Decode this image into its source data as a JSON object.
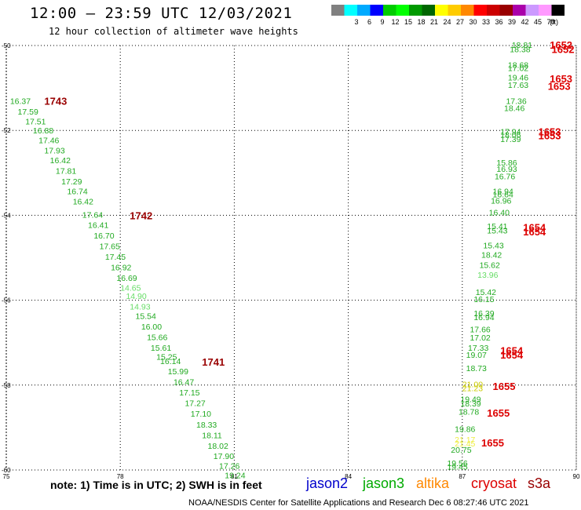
{
  "header": {
    "title": "12:00 – 23:59 UTC 12/03/2021",
    "subtitle": "12 hour collection of altimeter wave heights"
  },
  "legend": {
    "unit": "(ft)",
    "swatches": [
      {
        "color": "#808080",
        "label": ""
      },
      {
        "color": "#00ffff",
        "label": "3"
      },
      {
        "color": "#00aaff",
        "label": "6"
      },
      {
        "color": "#0000ff",
        "label": "9"
      },
      {
        "color": "#00cc00",
        "label": "12"
      },
      {
        "color": "#00ff00",
        "label": "15"
      },
      {
        "color": "#009900",
        "label": "18"
      },
      {
        "color": "#006600",
        "label": "21"
      },
      {
        "color": "#ffff00",
        "label": "24"
      },
      {
        "color": "#ffcc00",
        "label": "27"
      },
      {
        "color": "#ff8800",
        "label": "30"
      },
      {
        "color": "#ff0000",
        "label": "33"
      },
      {
        "color": "#cc0000",
        "label": "36"
      },
      {
        "color": "#990000",
        "label": "39"
      },
      {
        "color": "#aa00aa",
        "label": "42"
      },
      {
        "color": "#cc99ff",
        "label": "45"
      },
      {
        "color": "#ff99ff",
        "label": "70"
      },
      {
        "color": "#000000",
        "label": ""
      }
    ]
  },
  "map": {
    "lon_range": [
      75,
      90
    ],
    "lat_range": [
      -60,
      -50
    ],
    "lon_ticks": [
      "75",
      "78",
      "81",
      "84",
      "87",
      "90"
    ],
    "lat_ticks": [
      "-50",
      "-52",
      "-54",
      "-56",
      "-58",
      "-60"
    ]
  },
  "footer": {
    "note": "note:  1) Time is in UTC;  2) SWH is in feet",
    "satellites": [
      {
        "name": "jason2",
        "color": "#0000cc"
      },
      {
        "name": "jason3",
        "color": "#00aa00"
      },
      {
        "name": "altika",
        "color": "#ff8800"
      },
      {
        "name": "cryosat",
        "color": "#dd0000"
      },
      {
        "name": "s3a",
        "color": "#990000"
      }
    ],
    "credit": "NOAA/NESDIS Center for Satellite Applications and Research    Dec  6 08:27:46 UTC 2021"
  },
  "observations": [
    {
      "text": "16.37",
      "lon": 75.1,
      "lat": -51.3,
      "color": "#22aa22"
    },
    {
      "text": "17.59",
      "lon": 75.3,
      "lat": -51.55,
      "color": "#22aa22"
    },
    {
      "text": "17.51",
      "lon": 75.5,
      "lat": -51.78,
      "color": "#22aa22"
    },
    {
      "text": "16.88",
      "lon": 75.7,
      "lat": -52.0,
      "color": "#22aa22"
    },
    {
      "text": "17.46",
      "lon": 75.85,
      "lat": -52.23,
      "color": "#22aa22"
    },
    {
      "text": "17.93",
      "lon": 76.0,
      "lat": -52.47,
      "color": "#22aa22"
    },
    {
      "text": "16.42",
      "lon": 76.15,
      "lat": -52.7,
      "color": "#22aa22"
    },
    {
      "text": "17.81",
      "lon": 76.3,
      "lat": -52.95,
      "color": "#22aa22"
    },
    {
      "text": "17.29",
      "lon": 76.45,
      "lat": -53.2,
      "color": "#22aa22"
    },
    {
      "text": "16.74",
      "lon": 76.6,
      "lat": -53.43,
      "color": "#22aa22"
    },
    {
      "text": "16.42",
      "lon": 76.75,
      "lat": -53.67,
      "color": "#22aa22"
    },
    {
      "text": "17.64",
      "lon": 77.0,
      "lat": -53.98,
      "color": "#22aa22"
    },
    {
      "text": "16.41",
      "lon": 77.15,
      "lat": -54.22,
      "color": "#22aa22"
    },
    {
      "text": "16.70",
      "lon": 77.3,
      "lat": -54.47,
      "color": "#22aa22"
    },
    {
      "text": "17.65",
      "lon": 77.45,
      "lat": -54.72,
      "color": "#22aa22"
    },
    {
      "text": "17.45",
      "lon": 77.6,
      "lat": -54.97,
      "color": "#22aa22"
    },
    {
      "text": "16.92",
      "lon": 77.75,
      "lat": -55.22,
      "color": "#22aa22"
    },
    {
      "text": "16.69",
      "lon": 77.9,
      "lat": -55.47,
      "color": "#22aa22"
    },
    {
      "text": "14.65",
      "lon": 78.0,
      "lat": -55.7,
      "color": "#66dd66"
    },
    {
      "text": "14.90",
      "lon": 78.15,
      "lat": -55.9,
      "color": "#66dd66"
    },
    {
      "text": "14.93",
      "lon": 78.25,
      "lat": -56.15,
      "color": "#66dd66"
    },
    {
      "text": "15.54",
      "lon": 78.4,
      "lat": -56.37,
      "color": "#22aa22"
    },
    {
      "text": "16.00",
      "lon": 78.55,
      "lat": -56.62,
      "color": "#22aa22"
    },
    {
      "text": "15.66",
      "lon": 78.7,
      "lat": -56.87,
      "color": "#22aa22"
    },
    {
      "text": "15.61",
      "lon": 78.8,
      "lat": -57.12,
      "color": "#22aa22"
    },
    {
      "text": "15.25",
      "lon": 78.95,
      "lat": -57.33,
      "color": "#22aa22"
    },
    {
      "text": "16.14",
      "lon": 79.05,
      "lat": -57.43,
      "color": "#22aa22"
    },
    {
      "text": "15.99",
      "lon": 79.25,
      "lat": -57.67,
      "color": "#22aa22"
    },
    {
      "text": "16.47",
      "lon": 79.4,
      "lat": -57.92,
      "color": "#22aa22"
    },
    {
      "text": "17.15",
      "lon": 79.55,
      "lat": -58.17,
      "color": "#22aa22"
    },
    {
      "text": "17.27",
      "lon": 79.7,
      "lat": -58.42,
      "color": "#22aa22"
    },
    {
      "text": "17.10",
      "lon": 79.85,
      "lat": -58.67,
      "color": "#22aa22"
    },
    {
      "text": "18.33",
      "lon": 80.0,
      "lat": -58.93,
      "color": "#22aa22"
    },
    {
      "text": "18.11",
      "lon": 80.15,
      "lat": -59.18,
      "color": "#22aa22"
    },
    {
      "text": "18.02",
      "lon": 80.3,
      "lat": -59.43,
      "color": "#22aa22"
    },
    {
      "text": "17.90",
      "lon": 80.45,
      "lat": -59.67,
      "color": "#22aa22"
    },
    {
      "text": "17.26",
      "lon": 80.6,
      "lat": -59.9,
      "color": "#22aa22"
    },
    {
      "text": "19.24",
      "lon": 80.75,
      "lat": -60.12,
      "color": "#22aa22"
    },
    {
      "text": "18.81",
      "lon": 88.3,
      "lat": -49.98,
      "color": "#22aa22"
    },
    {
      "text": "18.38",
      "lon": 88.25,
      "lat": -50.08,
      "color": "#22aa22"
    },
    {
      "text": "18.68",
      "lon": 88.2,
      "lat": -50.45,
      "color": "#22aa22"
    },
    {
      "text": "17.02",
      "lon": 88.2,
      "lat": -50.53,
      "color": "#22aa22"
    },
    {
      "text": "19.46",
      "lon": 88.2,
      "lat": -50.75,
      "color": "#22aa22"
    },
    {
      "text": "17.63",
      "lon": 88.2,
      "lat": -50.92,
      "color": "#22aa22"
    },
    {
      "text": "17.36",
      "lon": 88.15,
      "lat": -51.3,
      "color": "#22aa22"
    },
    {
      "text": "18.46",
      "lon": 88.1,
      "lat": -51.47,
      "color": "#22aa22"
    },
    {
      "text": "17.94",
      "lon": 88.0,
      "lat": -52.02,
      "color": "#22aa22"
    },
    {
      "text": "18.06",
      "lon": 88.0,
      "lat": -52.1,
      "color": "#22aa22"
    },
    {
      "text": "17.39",
      "lon": 88.0,
      "lat": -52.2,
      "color": "#22aa22"
    },
    {
      "text": "15.86",
      "lon": 87.9,
      "lat": -52.75,
      "color": "#22aa22"
    },
    {
      "text": "16.93",
      "lon": 87.9,
      "lat": -52.9,
      "color": "#22aa22"
    },
    {
      "text": "16.76",
      "lon": 87.85,
      "lat": -53.08,
      "color": "#22aa22"
    },
    {
      "text": "16.94",
      "lon": 87.8,
      "lat": -53.43,
      "color": "#22aa22"
    },
    {
      "text": "16.64",
      "lon": 87.8,
      "lat": -53.5,
      "color": "#22aa22"
    },
    {
      "text": "16.96",
      "lon": 87.75,
      "lat": -53.65,
      "color": "#22aa22"
    },
    {
      "text": "16.40",
      "lon": 87.7,
      "lat": -53.93,
      "color": "#22aa22"
    },
    {
      "text": "15.41",
      "lon": 87.65,
      "lat": -54.25,
      "color": "#22aa22"
    },
    {
      "text": "15.43",
      "lon": 87.65,
      "lat": -54.35,
      "color": "#22aa22"
    },
    {
      "text": "15.43",
      "lon": 87.55,
      "lat": -54.7,
      "color": "#22aa22"
    },
    {
      "text": "18.42",
      "lon": 87.5,
      "lat": -54.93,
      "color": "#22aa22"
    },
    {
      "text": "15.62",
      "lon": 87.45,
      "lat": -55.17,
      "color": "#22aa22"
    },
    {
      "text": "13.96",
      "lon": 87.4,
      "lat": -55.4,
      "color": "#66dd66"
    },
    {
      "text": "15.42",
      "lon": 87.35,
      "lat": -55.8,
      "color": "#22aa22"
    },
    {
      "text": "16.15",
      "lon": 87.3,
      "lat": -55.97,
      "color": "#22aa22"
    },
    {
      "text": "16.39",
      "lon": 87.3,
      "lat": -56.3,
      "color": "#22aa22"
    },
    {
      "text": "16.94",
      "lon": 87.3,
      "lat": -56.4,
      "color": "#22aa22"
    },
    {
      "text": "17.66",
      "lon": 87.2,
      "lat": -56.68,
      "color": "#22aa22"
    },
    {
      "text": "17.02",
      "lon": 87.2,
      "lat": -56.88,
      "color": "#22aa22"
    },
    {
      "text": "17.33",
      "lon": 87.15,
      "lat": -57.12,
      "color": "#22aa22"
    },
    {
      "text": "19.07",
      "lon": 87.1,
      "lat": -57.28,
      "color": "#22aa22"
    },
    {
      "text": "18.73",
      "lon": 87.1,
      "lat": -57.6,
      "color": "#22aa22"
    },
    {
      "text": "21.00",
      "lon": 87.0,
      "lat": -57.98,
      "color": "#cccc00"
    },
    {
      "text": "21.23",
      "lon": 87.0,
      "lat": -58.07,
      "color": "#cccc00"
    },
    {
      "text": "19.49",
      "lon": 86.95,
      "lat": -58.33,
      "color": "#22aa22"
    },
    {
      "text": "18.39",
      "lon": 86.95,
      "lat": -58.43,
      "color": "#22aa22"
    },
    {
      "text": "18.78",
      "lon": 86.9,
      "lat": -58.62,
      "color": "#22aa22"
    },
    {
      "text": "19.86",
      "lon": 86.8,
      "lat": -59.03,
      "color": "#22aa22"
    },
    {
      "text": "21.17",
      "lon": 86.8,
      "lat": -59.28,
      "color": "#eeee44"
    },
    {
      "text": "21.45",
      "lon": 86.8,
      "lat": -59.37,
      "color": "#eeee44"
    },
    {
      "text": "20.75",
      "lon": 86.7,
      "lat": -59.52,
      "color": "#22aa22"
    },
    {
      "text": "19.56",
      "lon": 86.6,
      "lat": -59.83,
      "color": "#22aa22"
    },
    {
      "text": "19.45",
      "lon": 86.6,
      "lat": -59.92,
      "color": "#22aa22"
    }
  ],
  "track_labels": [
    {
      "text": "1743",
      "lon": 76.0,
      "lat": -51.3,
      "color": "#990000"
    },
    {
      "text": "1742",
      "lon": 78.25,
      "lat": -54.0,
      "color": "#990000"
    },
    {
      "text": "1741",
      "lon": 80.15,
      "lat": -57.45,
      "color": "#990000"
    },
    {
      "text": "1652",
      "lon": 89.3,
      "lat": -49.98,
      "color": "#dd0000"
    },
    {
      "text": "1652",
      "lon": 89.35,
      "lat": -50.08,
      "color": "#dd0000"
    },
    {
      "text": "1653",
      "lon": 89.3,
      "lat": -50.78,
      "color": "#dd0000"
    },
    {
      "text": "1653",
      "lon": 89.25,
      "lat": -50.95,
      "color": "#dd0000"
    },
    {
      "text": "1653",
      "lon": 89.0,
      "lat": -52.02,
      "color": "#dd0000"
    },
    {
      "text": "1653",
      "lon": 89.0,
      "lat": -52.12,
      "color": "#dd0000"
    },
    {
      "text": "1654",
      "lon": 88.6,
      "lat": -54.28,
      "color": "#dd0000"
    },
    {
      "text": "1654",
      "lon": 88.6,
      "lat": -54.38,
      "color": "#dd0000"
    },
    {
      "text": "1654",
      "lon": 88.0,
      "lat": -57.18,
      "color": "#dd0000"
    },
    {
      "text": "1654",
      "lon": 88.0,
      "lat": -57.28,
      "color": "#dd0000"
    },
    {
      "text": "1655",
      "lon": 87.8,
      "lat": -58.02,
      "color": "#dd0000"
    },
    {
      "text": "1655",
      "lon": 87.65,
      "lat": -58.65,
      "color": "#dd0000"
    },
    {
      "text": "1655",
      "lon": 87.5,
      "lat": -59.35,
      "color": "#dd0000"
    }
  ]
}
